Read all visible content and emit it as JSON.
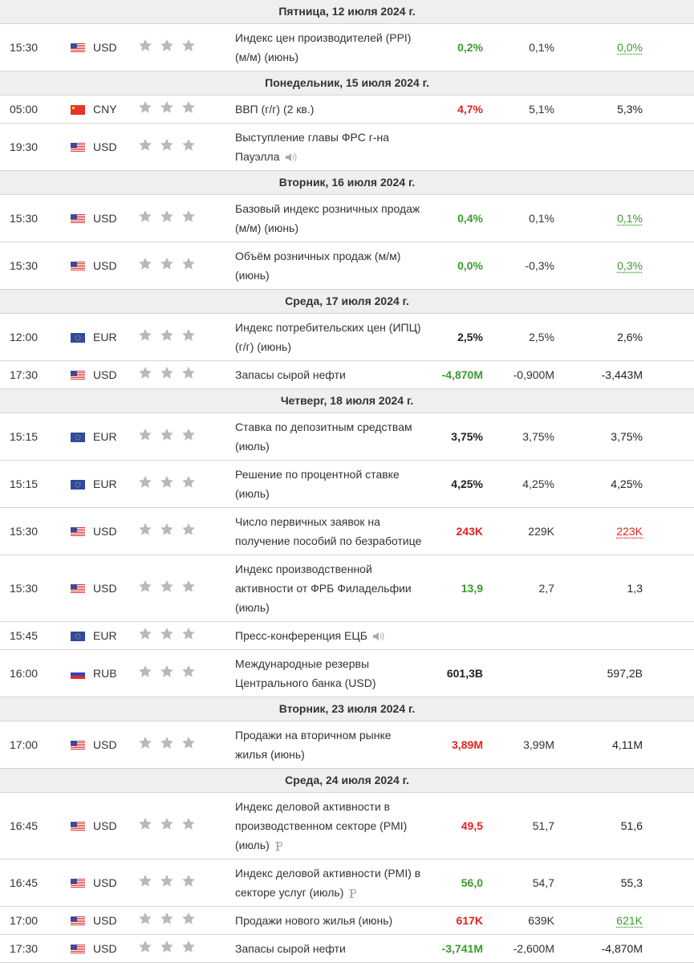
{
  "sections": [
    {
      "date": "Пятница, 12 июля 2024 г.",
      "events": [
        {
          "time": "15:30",
          "currency": "USD",
          "event": "Индекс цен производителей (PPI) (м/м) (июнь)",
          "actual": "0,2%",
          "forecast": "0,1%",
          "previous": "0,0%",
          "actual_color": "#3a9c2c",
          "previous_color": "#3a9c2c"
        }
      ]
    },
    {
      "date": "Понедельник, 15 июля 2024 г.",
      "events": [
        {
          "time": "05:00",
          "currency": "CNY",
          "event": "ВВП (г/г) (2 кв.)",
          "actual": "4,7%",
          "forecast": "5,1%",
          "previous": "5,3%",
          "actual_color": "#e5221e"
        },
        {
          "time": "19:30",
          "currency": "USD",
          "event": "Выступление главы ФРС г-на Пауэлла",
          "icon": "speaker"
        }
      ]
    },
    {
      "date": "Вторник, 16 июля 2024 г.",
      "events": [
        {
          "time": "15:30",
          "currency": "USD",
          "event": "Базовый индекс розничных продаж (м/м) (июнь)",
          "actual": "0,4%",
          "forecast": "0,1%",
          "previous": "0,1%",
          "actual_color": "#3a9c2c",
          "previous_color": "#3a9c2c"
        },
        {
          "time": "15:30",
          "currency": "USD",
          "event": "Объём розничных продаж (м/м) (июнь)",
          "actual": "0,0%",
          "forecast": "-0,3%",
          "previous": "0,3%",
          "actual_color": "#3a9c2c",
          "previous_color": "#3a9c2c"
        }
      ]
    },
    {
      "date": "Среда, 17 июля 2024 г.",
      "events": [
        {
          "time": "12:00",
          "currency": "EUR",
          "event": "Индекс потребительских цен (ИПЦ) (г/г) (июнь)",
          "actual": "2,5%",
          "forecast": "2,5%",
          "previous": "2,6%"
        },
        {
          "time": "17:30",
          "currency": "USD",
          "event": "Запасы сырой нефти",
          "actual": "-4,870M",
          "forecast": "-0,900M",
          "previous": "-3,443M",
          "actual_color": "#3a9c2c"
        }
      ]
    },
    {
      "date": "Четверг, 18 июля 2024 г.",
      "events": [
        {
          "time": "15:15",
          "currency": "EUR",
          "event": "Ставка по депозитным средствам (июль)",
          "actual": "3,75%",
          "forecast": "3,75%",
          "previous": "3,75%"
        },
        {
          "time": "15:15",
          "currency": "EUR",
          "event": "Решение по процентной ставке (июль)",
          "actual": "4,25%",
          "forecast": "4,25%",
          "previous": "4,25%"
        },
        {
          "time": "15:30",
          "currency": "USD",
          "event": "Число первичных заявок на получение пособий по безработице",
          "actual": "243K",
          "forecast": "229K",
          "previous": "223K",
          "actual_color": "#e5221e",
          "previous_color": "#e5221e"
        },
        {
          "time": "15:30",
          "currency": "USD",
          "event": "Индекс производственной активности от ФРБ Филадельфии (июль)",
          "actual": "13,9",
          "forecast": "2,7",
          "previous": "1,3",
          "actual_color": "#3a9c2c"
        },
        {
          "time": "15:45",
          "currency": "EUR",
          "event": "Пресс-конференция ЕЦБ",
          "icon": "speaker"
        },
        {
          "time": "16:00",
          "currency": "RUB",
          "event": "Международные резервы Центрального банка (USD)",
          "actual": "601,3B",
          "previous": "597,2B"
        }
      ]
    },
    {
      "date": "Вторник, 23 июля 2024 г.",
      "events": [
        {
          "time": "17:00",
          "currency": "USD",
          "event": "Продажи на вторичном рынке жилья (июнь)",
          "actual": "3,89M",
          "forecast": "3,99M",
          "previous": "4,11M",
          "actual_color": "#e5221e"
        }
      ]
    },
    {
      "date": "Среда, 24 июля 2024 г.",
      "events": [
        {
          "time": "16:45",
          "currency": "USD",
          "event": "Индекс деловой активности в производственном секторе (PMI) (июль)",
          "actual": "49,5",
          "forecast": "51,7",
          "previous": "51,6",
          "actual_color": "#e5221e",
          "icon": "preliminary"
        },
        {
          "time": "16:45",
          "currency": "USD",
          "event": "Индекс деловой активности (PMI) в секторе услуг (июль)",
          "actual": "56,0",
          "forecast": "54,7",
          "previous": "55,3",
          "actual_color": "#3a9c2c",
          "icon": "preliminary"
        },
        {
          "time": "17:00",
          "currency": "USD",
          "event": "Продажи нового жилья (июнь)",
          "actual": "617K",
          "forecast": "639K",
          "previous": "621K",
          "actual_color": "#e5221e",
          "previous_color": "#3a9c2c"
        },
        {
          "time": "17:30",
          "currency": "USD",
          "event": "Запасы сырой нефти",
          "actual": "-3,741M",
          "forecast": "-2,600M",
          "previous": "-4,870M",
          "actual_color": "#3a9c2c"
        }
      ]
    }
  ]
}
